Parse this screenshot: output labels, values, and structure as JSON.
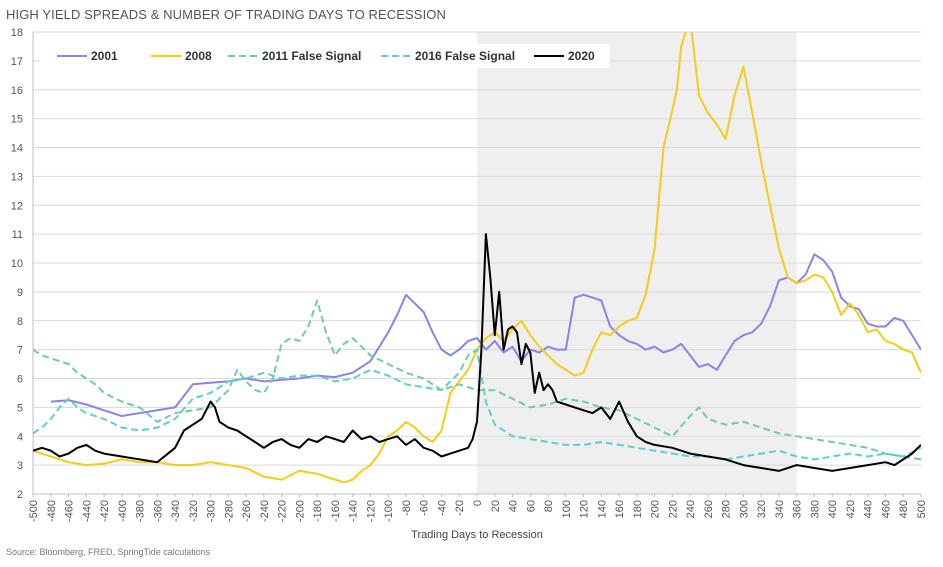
{
  "chart_data": {
    "type": "line",
    "title": "HIGH YIELD SPREADS & NUMBER OF TRADING DAYS TO RECESSION",
    "xlabel": "Trading Days to Recession",
    "ylabel": "",
    "xlim": [
      -500,
      500
    ],
    "ylim": [
      2,
      18
    ],
    "x_ticks": [
      -500,
      -480,
      -460,
      -440,
      -420,
      -400,
      -380,
      -360,
      -340,
      -320,
      -300,
      -280,
      -260,
      -240,
      -220,
      -200,
      -180,
      -160,
      -140,
      -120,
      -100,
      -80,
      -60,
      -40,
      -20,
      0,
      20,
      40,
      60,
      80,
      100,
      120,
      140,
      160,
      180,
      200,
      220,
      240,
      260,
      280,
      300,
      320,
      340,
      360,
      380,
      400,
      420,
      440,
      460,
      480,
      500
    ],
    "y_ticks": [
      2,
      3,
      4,
      5,
      6,
      7,
      8,
      9,
      10,
      11,
      12,
      13,
      14,
      15,
      16,
      17,
      18
    ],
    "shaded_region": [
      0,
      360
    ],
    "grid": "horizontal",
    "legend_position": "top",
    "source": "Source: Bloomberg, FRED, SpringTide calculations",
    "series": [
      {
        "name": "2001",
        "color": "#8B84E8",
        "dash": "solid",
        "x": [
          -480,
          -460,
          -440,
          -420,
          -400,
          -380,
          -360,
          -340,
          -320,
          -300,
          -280,
          -260,
          -240,
          -220,
          -200,
          -180,
          -160,
          -140,
          -120,
          -100,
          -90,
          -80,
          -70,
          -60,
          -50,
          -40,
          -30,
          -20,
          -10,
          0,
          10,
          20,
          30,
          40,
          50,
          60,
          70,
          80,
          90,
          100,
          110,
          120,
          130,
          140,
          150,
          160,
          170,
          180,
          190,
          200,
          210,
          220,
          230,
          240,
          250,
          260,
          270,
          280,
          290,
          300,
          310,
          320,
          330,
          340,
          350,
          360,
          370,
          380,
          390,
          400,
          410,
          420,
          430,
          440,
          450,
          460,
          470,
          480,
          490,
          500
        ],
        "y": [
          5.2,
          5.25,
          5.1,
          4.9,
          4.7,
          4.8,
          4.9,
          5.0,
          5.8,
          5.85,
          5.9,
          6.0,
          5.9,
          5.95,
          6.0,
          6.1,
          6.05,
          6.2,
          6.6,
          7.6,
          8.2,
          8.9,
          8.6,
          8.3,
          7.6,
          7.0,
          6.8,
          7.0,
          7.3,
          7.4,
          7.0,
          7.3,
          6.9,
          7.1,
          6.6,
          7.0,
          6.9,
          7.1,
          7.0,
          7.0,
          8.8,
          8.9,
          8.8,
          8.7,
          7.8,
          7.5,
          7.3,
          7.2,
          7.0,
          7.1,
          6.9,
          7.0,
          7.2,
          6.8,
          6.4,
          6.5,
          6.3,
          6.8,
          7.3,
          7.5,
          7.6,
          7.9,
          8.5,
          9.4,
          9.5,
          9.3,
          9.6,
          10.3,
          10.1,
          9.7,
          8.8,
          8.5,
          8.4,
          7.9,
          7.8,
          7.8,
          8.1,
          8.0,
          7.5,
          7.0
        ]
      },
      {
        "name": "2008",
        "color": "#F5CC17",
        "dash": "solid",
        "x": [
          -500,
          -480,
          -460,
          -440,
          -420,
          -400,
          -380,
          -360,
          -340,
          -320,
          -300,
          -280,
          -260,
          -240,
          -220,
          -200,
          -180,
          -160,
          -150,
          -140,
          -130,
          -120,
          -110,
          -100,
          -90,
          -80,
          -70,
          -60,
          -50,
          -40,
          -30,
          -20,
          -10,
          0,
          10,
          20,
          30,
          40,
          50,
          60,
          70,
          80,
          90,
          100,
          110,
          120,
          130,
          140,
          150,
          160,
          170,
          180,
          190,
          200,
          210,
          220,
          225,
          230,
          240,
          250,
          260,
          270,
          280,
          290,
          300,
          310,
          320,
          330,
          340,
          350,
          360,
          370,
          380,
          390,
          400,
          410,
          420,
          430,
          440,
          450,
          460,
          470,
          480,
          490,
          500
        ],
        "y": [
          3.5,
          3.3,
          3.1,
          3.0,
          3.05,
          3.2,
          3.1,
          3.1,
          3.0,
          3.0,
          3.1,
          3.0,
          2.9,
          2.6,
          2.5,
          2.8,
          2.7,
          2.5,
          2.4,
          2.5,
          2.8,
          3.0,
          3.4,
          4.0,
          4.2,
          4.5,
          4.3,
          4.0,
          3.8,
          4.2,
          5.5,
          5.9,
          6.3,
          7.0,
          7.4,
          7.6,
          7.3,
          7.7,
          8.0,
          7.5,
          7.1,
          6.8,
          6.5,
          6.3,
          6.1,
          6.2,
          7.0,
          7.6,
          7.5,
          7.8,
          8.0,
          8.1,
          8.9,
          10.5,
          14.0,
          15.3,
          16.0,
          17.5,
          18.5,
          15.8,
          15.2,
          14.8,
          14.3,
          15.8,
          16.8,
          15.2,
          13.5,
          12.0,
          10.5,
          9.5,
          9.3,
          9.4,
          9.6,
          9.5,
          9.0,
          8.2,
          8.6,
          8.2,
          7.6,
          7.7,
          7.3,
          7.2,
          7.0,
          6.9,
          6.2
        ]
      },
      {
        "name": "2011 False Signal",
        "color": "#6FCBA9",
        "dash": "dashed",
        "x": [
          -500,
          -490,
          -480,
          -470,
          -460,
          -450,
          -440,
          -430,
          -420,
          -400,
          -380,
          -360,
          -340,
          -320,
          -300,
          -280,
          -270,
          -260,
          -250,
          -240,
          -230,
          -220,
          -210,
          -200,
          -190,
          -180,
          -170,
          -160,
          -150,
          -140,
          -120,
          -100,
          -80,
          -60,
          -40,
          -20,
          0,
          20,
          40,
          60,
          80,
          100,
          120,
          140,
          160,
          180,
          200,
          220,
          240,
          250,
          260,
          280,
          300,
          320,
          340,
          360,
          380,
          400,
          420,
          440,
          460,
          480,
          500
        ],
        "y": [
          7.0,
          6.8,
          6.7,
          6.6,
          6.5,
          6.2,
          6.0,
          5.8,
          5.5,
          5.2,
          5.0,
          4.5,
          4.8,
          4.9,
          5.0,
          5.6,
          6.3,
          5.9,
          5.6,
          5.5,
          6.0,
          7.2,
          7.4,
          7.3,
          7.8,
          8.7,
          7.6,
          6.8,
          7.2,
          7.4,
          6.8,
          6.5,
          6.2,
          6.0,
          5.6,
          5.8,
          5.6,
          5.6,
          5.3,
          5.0,
          5.1,
          5.3,
          5.2,
          5.0,
          4.9,
          4.6,
          4.3,
          4.0,
          4.7,
          5.0,
          4.6,
          4.4,
          4.5,
          4.3,
          4.1,
          4.0,
          3.9,
          3.8,
          3.7,
          3.6,
          3.4,
          3.3,
          3.2
        ]
      },
      {
        "name": "2016 False Signal",
        "color": "#5FCFC8",
        "dash": "dashed",
        "x": [
          -500,
          -490,
          -480,
          -470,
          -460,
          -450,
          -440,
          -420,
          -400,
          -380,
          -360,
          -340,
          -320,
          -300,
          -280,
          -260,
          -240,
          -220,
          -200,
          -180,
          -160,
          -140,
          -120,
          -100,
          -80,
          -60,
          -40,
          -20,
          -10,
          0,
          10,
          20,
          40,
          60,
          80,
          100,
          120,
          140,
          160,
          180,
          200,
          220,
          240,
          260,
          280,
          300,
          320,
          340,
          360,
          380,
          400,
          420,
          440,
          460,
          480,
          500
        ],
        "y": [
          4.1,
          4.3,
          4.6,
          5.0,
          5.3,
          5.0,
          4.8,
          4.6,
          4.3,
          4.2,
          4.3,
          4.6,
          5.3,
          5.5,
          5.9,
          6.0,
          6.2,
          6.0,
          6.1,
          6.1,
          5.9,
          6.0,
          6.3,
          6.1,
          5.8,
          5.7,
          5.6,
          6.2,
          6.8,
          7.0,
          5.2,
          4.4,
          4.0,
          3.9,
          3.8,
          3.7,
          3.7,
          3.8,
          3.7,
          3.6,
          3.5,
          3.4,
          3.3,
          3.3,
          3.2,
          3.3,
          3.4,
          3.5,
          3.3,
          3.2,
          3.3,
          3.4,
          3.3,
          3.4,
          3.3,
          3.6
        ]
      },
      {
        "name": "2020",
        "color": "#000000",
        "dash": "solid",
        "x": [
          -500,
          -490,
          -480,
          -470,
          -460,
          -450,
          -440,
          -430,
          -420,
          -400,
          -380,
          -360,
          -340,
          -330,
          -320,
          -310,
          -300,
          -295,
          -290,
          -280,
          -270,
          -260,
          -250,
          -240,
          -230,
          -220,
          -210,
          -200,
          -190,
          -180,
          -170,
          -160,
          -150,
          -140,
          -130,
          -120,
          -110,
          -100,
          -90,
          -80,
          -70,
          -60,
          -50,
          -40,
          -30,
          -20,
          -10,
          -5,
          0,
          5,
          10,
          15,
          20,
          25,
          30,
          35,
          40,
          45,
          50,
          55,
          60,
          65,
          70,
          75,
          80,
          85,
          90,
          100,
          110,
          120,
          130,
          140,
          150,
          160,
          170,
          180,
          190,
          200,
          220,
          240,
          260,
          280,
          300,
          320,
          340,
          360,
          380,
          400,
          420,
          440,
          460,
          470,
          480,
          490,
          500
        ],
        "y": [
          3.5,
          3.6,
          3.5,
          3.3,
          3.4,
          3.6,
          3.7,
          3.5,
          3.4,
          3.3,
          3.2,
          3.1,
          3.6,
          4.2,
          4.4,
          4.6,
          5.2,
          5.0,
          4.5,
          4.3,
          4.2,
          4.0,
          3.8,
          3.6,
          3.8,
          3.9,
          3.7,
          3.6,
          3.9,
          3.8,
          4.0,
          3.9,
          3.8,
          4.2,
          3.9,
          4.0,
          3.8,
          3.9,
          4.0,
          3.7,
          3.9,
          3.6,
          3.5,
          3.3,
          3.4,
          3.5,
          3.6,
          3.9,
          4.5,
          7.0,
          11.0,
          9.5,
          7.5,
          9.0,
          7.0,
          7.7,
          7.8,
          7.6,
          6.5,
          7.2,
          6.9,
          5.5,
          6.2,
          5.6,
          5.8,
          5.6,
          5.2,
          5.1,
          5.0,
          4.9,
          4.8,
          5.0,
          4.6,
          5.2,
          4.5,
          4.0,
          3.8,
          3.7,
          3.6,
          3.4,
          3.3,
          3.2,
          3.0,
          2.9,
          2.8,
          3.0,
          2.9,
          2.8,
          2.9,
          3.0,
          3.1,
          3.0,
          3.2,
          3.4,
          3.7
        ]
      }
    ]
  }
}
